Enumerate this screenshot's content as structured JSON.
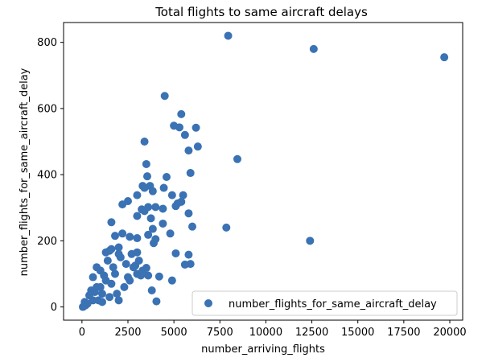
{
  "chart_data": {
    "type": "scatter",
    "title": "Total flights to same aircraft delays",
    "xlabel": "number_arriving_flights",
    "ylabel": "number_flights_for_same_aircraft_delay",
    "xlim": [
      -1000,
      20700
    ],
    "ylim": [
      -40,
      860
    ],
    "xticks": [
      0,
      2500,
      5000,
      7500,
      10000,
      12500,
      15000,
      17500,
      20000
    ],
    "yticks": [
      0,
      200,
      400,
      600,
      800
    ],
    "xtick_labels": [
      "0",
      "2500",
      "5000",
      "7500",
      "10000",
      "12500",
      "15000",
      "17500",
      "20000"
    ],
    "ytick_labels": [
      "0",
      "200",
      "400",
      "600",
      "800"
    ],
    "grid": false,
    "legend_position": "lower-right",
    "color": "#3a72b4",
    "series": [
      {
        "name": "number_flights_for_same_aircraft_delay",
        "points": [
          [
            7950,
            820
          ],
          [
            12600,
            780
          ],
          [
            19700,
            755
          ],
          [
            4500,
            638
          ],
          [
            5400,
            583
          ],
          [
            5000,
            548
          ],
          [
            5300,
            543
          ],
          [
            6200,
            542
          ],
          [
            5600,
            520
          ],
          [
            3400,
            500
          ],
          [
            6300,
            485
          ],
          [
            5800,
            473
          ],
          [
            8450,
            447
          ],
          [
            3500,
            432
          ],
          [
            5900,
            405
          ],
          [
            3550,
            395
          ],
          [
            4600,
            393
          ],
          [
            4450,
            360
          ],
          [
            3300,
            366
          ],
          [
            3700,
            366
          ],
          [
            3400,
            360
          ],
          [
            4900,
            338
          ],
          [
            5500,
            338
          ],
          [
            3850,
            350
          ],
          [
            3000,
            338
          ],
          [
            3250,
            295
          ],
          [
            2500,
            320
          ],
          [
            5200,
            313
          ],
          [
            5400,
            318
          ],
          [
            5100,
            305
          ],
          [
            3600,
            302
          ],
          [
            4000,
            302
          ],
          [
            4400,
            297
          ],
          [
            2200,
            310
          ],
          [
            5800,
            283
          ],
          [
            3400,
            290
          ],
          [
            3000,
            275
          ],
          [
            4400,
            252
          ],
          [
            3750,
            268
          ],
          [
            1600,
            256
          ],
          [
            6000,
            243
          ],
          [
            7850,
            240
          ],
          [
            3850,
            236
          ],
          [
            3600,
            218
          ],
          [
            4000,
            205
          ],
          [
            4800,
            222
          ],
          [
            3900,
            193
          ],
          [
            3000,
            208
          ],
          [
            12400,
            200
          ],
          [
            2200,
            222
          ],
          [
            2600,
            212
          ],
          [
            1800,
            215
          ],
          [
            2000,
            180
          ],
          [
            1600,
            175
          ],
          [
            5100,
            162
          ],
          [
            5800,
            158
          ],
          [
            5900,
            130
          ],
          [
            5600,
            128
          ],
          [
            3000,
            165
          ],
          [
            2900,
            125
          ],
          [
            3500,
            118
          ],
          [
            4200,
            92
          ],
          [
            4900,
            80
          ],
          [
            3200,
            95
          ],
          [
            3800,
            50
          ],
          [
            4050,
            17
          ],
          [
            2500,
            90
          ],
          [
            2300,
            60
          ],
          [
            1900,
            40
          ],
          [
            1500,
            30
          ],
          [
            1300,
            80
          ],
          [
            1000,
            110
          ],
          [
            800,
            60
          ],
          [
            600,
            20
          ],
          [
            300,
            10
          ],
          [
            200,
            5
          ],
          [
            150,
            15
          ],
          [
            100,
            2
          ],
          [
            50,
            0
          ],
          [
            400,
            35
          ],
          [
            700,
            45
          ],
          [
            900,
            20
          ],
          [
            1100,
            15
          ],
          [
            1200,
            95
          ],
          [
            1400,
            140
          ],
          [
            1700,
            120
          ],
          [
            2100,
            150
          ],
          [
            2700,
            160
          ],
          [
            3100,
            140
          ],
          [
            1000,
            60
          ],
          [
            500,
            50
          ],
          [
            1800,
            100
          ],
          [
            2400,
            130
          ],
          [
            2800,
            120
          ],
          [
            3300,
            110
          ],
          [
            3600,
            95
          ],
          [
            1300,
            165
          ],
          [
            1500,
            170
          ],
          [
            2000,
            160
          ],
          [
            600,
            90
          ],
          [
            800,
            120
          ],
          [
            1100,
            40
          ],
          [
            1600,
            70
          ],
          [
            2000,
            20
          ],
          [
            2600,
            80
          ],
          [
            3000,
            100
          ]
        ]
      }
    ]
  }
}
